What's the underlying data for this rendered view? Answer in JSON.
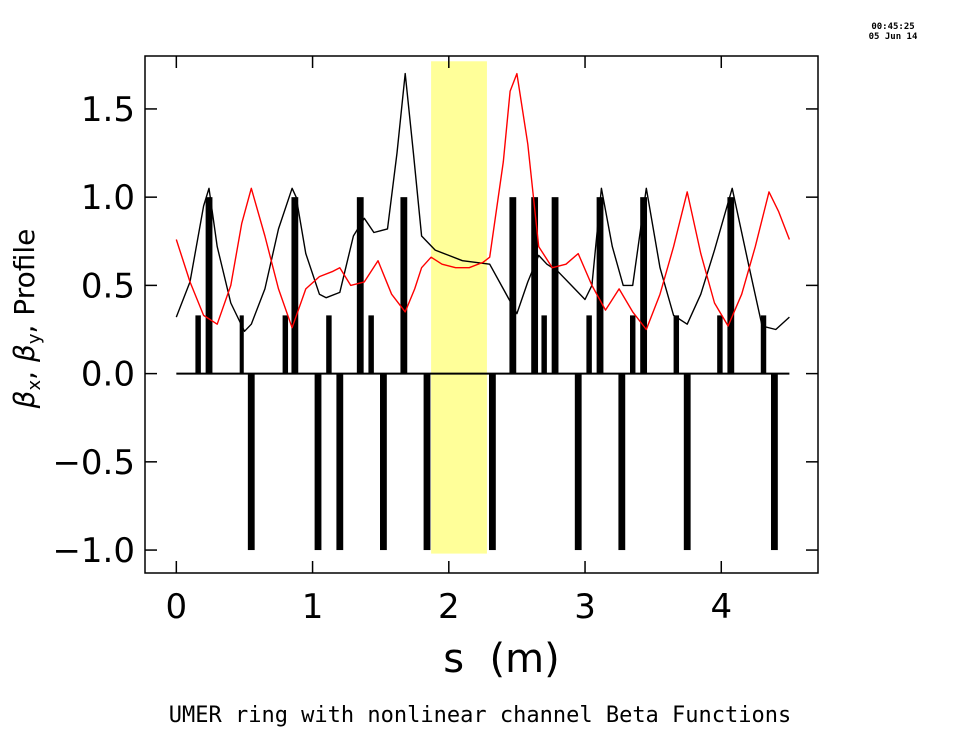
{
  "timestamp": {
    "time": "00:45:25",
    "date": "05 Jun 14"
  },
  "chart_data": {
    "type": "line",
    "title": "UMER ring with nonlinear channel Beta Functions",
    "xlabel": "s (m)",
    "ylabel_parts": {
      "beta": "β",
      "x": "x",
      "y": "y",
      "rest": "Profile"
    },
    "xlim": [
      -0.23,
      4.71
    ],
    "ylim": [
      -1.13,
      1.8
    ],
    "xticks": [
      0,
      1,
      2,
      3,
      4
    ],
    "xtick_labels": [
      "0",
      "1",
      "2",
      "3",
      "4"
    ],
    "yticks": [
      -1.0,
      -0.5,
      0.0,
      0.5,
      1.0,
      1.5
    ],
    "ytick_labels": [
      "−1.0",
      "−0.5",
      "0.0",
      "0.5",
      "1.0",
      "1.5"
    ],
    "grid": false,
    "highlight_region": {
      "x": [
        1.87,
        2.28
      ],
      "y": [
        -1.02,
        1.77
      ],
      "color": "#ffff99"
    },
    "series": [
      {
        "color": "#000000",
        "x": [
          0.0,
          0.1,
          0.2,
          0.24,
          0.3,
          0.4,
          0.5,
          0.55,
          0.65,
          0.75,
          0.85,
          0.88,
          0.95,
          1.05,
          1.1,
          1.2,
          1.3,
          1.38,
          1.45,
          1.55,
          1.62,
          1.68,
          1.74,
          1.8,
          1.9,
          2.0,
          2.1,
          2.2,
          2.3,
          2.4,
          2.5,
          2.58,
          2.66,
          2.72,
          2.8,
          2.9,
          3.0,
          3.05,
          3.12,
          3.2,
          3.28,
          3.35,
          3.45,
          3.55,
          3.65,
          3.75,
          3.85,
          3.95,
          4.08,
          4.2,
          4.3,
          4.4,
          4.5
        ],
        "y": [
          0.32,
          0.52,
          0.95,
          1.05,
          0.72,
          0.4,
          0.24,
          0.28,
          0.48,
          0.82,
          1.05,
          1.0,
          0.68,
          0.45,
          0.43,
          0.46,
          0.78,
          0.88,
          0.8,
          0.82,
          1.25,
          1.7,
          1.25,
          0.78,
          0.7,
          0.67,
          0.64,
          0.63,
          0.62,
          0.48,
          0.34,
          0.52,
          0.67,
          0.62,
          0.58,
          0.5,
          0.42,
          0.5,
          1.05,
          0.72,
          0.5,
          0.5,
          1.05,
          0.6,
          0.33,
          0.28,
          0.45,
          0.7,
          1.05,
          0.62,
          0.27,
          0.25,
          0.32
        ]
      },
      {
        "color": "#ff0000",
        "x": [
          0.0,
          0.1,
          0.2,
          0.3,
          0.4,
          0.48,
          0.55,
          0.65,
          0.75,
          0.85,
          0.95,
          1.05,
          1.15,
          1.2,
          1.28,
          1.38,
          1.48,
          1.58,
          1.68,
          1.75,
          1.8,
          1.87,
          1.95,
          2.05,
          2.15,
          2.25,
          2.3,
          2.4,
          2.45,
          2.5,
          2.58,
          2.66,
          2.76,
          2.86,
          2.95,
          3.05,
          3.15,
          3.25,
          3.35,
          3.45,
          3.55,
          3.65,
          3.75,
          3.85,
          3.95,
          4.05,
          4.15,
          4.25,
          4.35,
          4.42,
          4.5
        ],
        "y": [
          0.76,
          0.52,
          0.33,
          0.28,
          0.5,
          0.85,
          1.05,
          0.78,
          0.48,
          0.26,
          0.48,
          0.55,
          0.58,
          0.6,
          0.5,
          0.52,
          0.64,
          0.45,
          0.35,
          0.48,
          0.6,
          0.66,
          0.62,
          0.6,
          0.6,
          0.63,
          0.66,
          1.2,
          1.6,
          1.7,
          1.3,
          0.72,
          0.6,
          0.62,
          0.68,
          0.5,
          0.36,
          0.48,
          0.35,
          0.25,
          0.45,
          0.72,
          1.03,
          0.68,
          0.4,
          0.27,
          0.45,
          0.72,
          1.03,
          0.92,
          0.76
        ]
      }
    ],
    "bars": [
      {
        "x": 0.16,
        "width": 0.04,
        "height": 0.33
      },
      {
        "x": 0.24,
        "width": 0.05,
        "height": 1.0
      },
      {
        "x": 0.48,
        "width": 0.03,
        "height": 0.33
      },
      {
        "x": 0.55,
        "width": 0.05,
        "height": -1.0
      },
      {
        "x": 0.8,
        "width": 0.04,
        "height": 0.33
      },
      {
        "x": 0.87,
        "width": 0.05,
        "height": 1.0
      },
      {
        "x": 1.04,
        "width": 0.05,
        "height": -1.0
      },
      {
        "x": 1.12,
        "width": 0.04,
        "height": 0.33
      },
      {
        "x": 1.2,
        "width": 0.05,
        "height": -1.0
      },
      {
        "x": 1.35,
        "width": 0.05,
        "height": 1.0
      },
      {
        "x": 1.43,
        "width": 0.04,
        "height": 0.33
      },
      {
        "x": 1.52,
        "width": 0.05,
        "height": -1.0
      },
      {
        "x": 1.67,
        "width": 0.05,
        "height": 1.0
      },
      {
        "x": 1.84,
        "width": 0.05,
        "height": -1.0
      },
      {
        "x": 2.32,
        "width": 0.05,
        "height": -1.0
      },
      {
        "x": 2.47,
        "width": 0.05,
        "height": 1.0
      },
      {
        "x": 2.63,
        "width": 0.05,
        "height": 1.0
      },
      {
        "x": 2.7,
        "width": 0.04,
        "height": 0.33
      },
      {
        "x": 2.78,
        "width": 0.05,
        "height": 1.0
      },
      {
        "x": 2.95,
        "width": 0.05,
        "height": -1.0
      },
      {
        "x": 3.03,
        "width": 0.04,
        "height": 0.33
      },
      {
        "x": 3.11,
        "width": 0.05,
        "height": 1.0
      },
      {
        "x": 3.27,
        "width": 0.05,
        "height": -1.0
      },
      {
        "x": 3.35,
        "width": 0.04,
        "height": 0.33
      },
      {
        "x": 3.43,
        "width": 0.05,
        "height": 1.0
      },
      {
        "x": 3.67,
        "width": 0.04,
        "height": 0.33
      },
      {
        "x": 3.75,
        "width": 0.05,
        "height": -1.0
      },
      {
        "x": 3.99,
        "width": 0.04,
        "height": 0.33
      },
      {
        "x": 4.07,
        "width": 0.05,
        "height": 1.0
      },
      {
        "x": 4.31,
        "width": 0.04,
        "height": 0.33
      },
      {
        "x": 4.39,
        "width": 0.05,
        "height": -1.0
      }
    ],
    "baseline": {
      "y": 0.0,
      "x": [
        0.0,
        4.5
      ]
    }
  }
}
